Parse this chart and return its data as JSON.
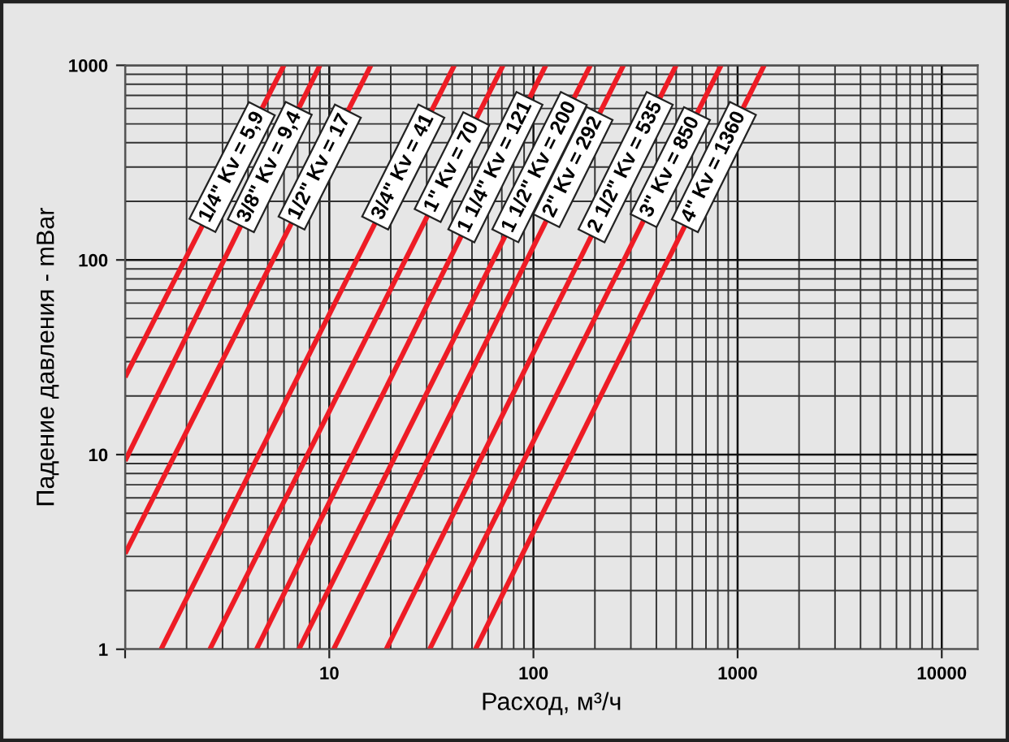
{
  "chart_data": {
    "type": "line",
    "xlabel": "Расход, м³/ч",
    "ylabel": "Падение давления - mBar",
    "log": "xy",
    "grid": true,
    "legend": false,
    "marker": "none",
    "line_style": "solid",
    "xlim": [
      1,
      15000
    ],
    "xticks": [
      {
        "value": 1,
        "label": null
      },
      10,
      100,
      1000,
      10000
    ],
    "ylim": [
      1,
      1000
    ],
    "yticks": [
      1,
      10,
      100,
      1000
    ],
    "series": [
      {
        "name": "1/4\" Kv = 5,9",
        "color": "#ee1c25",
        "x": [
          1,
          6
        ],
        "values": [
          25,
          1000
        ]
      },
      {
        "name": "3/8\" Kv = 9,4",
        "color": "#ee1c25",
        "x": [
          1,
          9
        ],
        "values": [
          9.3,
          1000
        ]
      },
      {
        "name": "1/2\" Kv = 17",
        "color": "#ee1c25",
        "x": [
          1,
          16
        ],
        "values": [
          3.1,
          1000
        ]
      },
      {
        "name": "3/4\" Kv = 41",
        "color": "#ee1c25",
        "x": [
          1.5,
          41
        ],
        "values": [
          1,
          1000
        ]
      },
      {
        "name": "1\" Kv = 70",
        "color": "#ee1c25",
        "x": [
          2.6,
          71
        ],
        "values": [
          1,
          1000
        ]
      },
      {
        "name": "1 1/4\" Kv = 121",
        "color": "#ee1c25",
        "x": [
          4.4,
          115
        ],
        "values": [
          1,
          1000
        ]
      },
      {
        "name": "1 1/2\" Kv = 200",
        "color": "#ee1c25",
        "x": [
          7.1,
          190
        ],
        "values": [
          1,
          1000
        ]
      },
      {
        "name": "2\" Kv = 292",
        "color": "#ee1c25",
        "x": [
          10.5,
          276
        ],
        "values": [
          1,
          1000
        ]
      },
      {
        "name": "2 1/2\" Kv = 535",
        "color": "#ee1c25",
        "x": [
          19,
          500
        ],
        "values": [
          1,
          1000
        ]
      },
      {
        "name": "3\" Kv = 850",
        "color": "#ee1c25",
        "x": [
          31,
          830
        ],
        "values": [
          1,
          1000
        ]
      },
      {
        "name": "4\" Kv = 1360",
        "color": "#ee1c25",
        "x": [
          52,
          1350
        ],
        "values": [
          1,
          1000
        ]
      }
    ]
  }
}
